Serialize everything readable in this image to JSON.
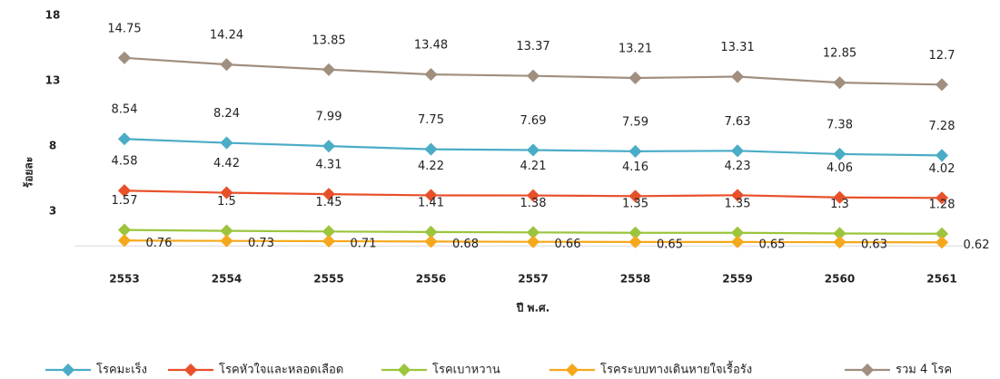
{
  "chart_data": {
    "type": "line",
    "y_label": "ร้อยละ",
    "x_label": "ปี พ.ศ.",
    "categories": [
      "2553",
      "2554",
      "2555",
      "2556",
      "2557",
      "2558",
      "2559",
      "2560",
      "2561"
    ],
    "series": [
      {
        "name": "โรคมะเร็ง",
        "color": "#4bacc6",
        "values": [
          8.54,
          8.24,
          7.99,
          7.75,
          7.69,
          7.59,
          7.63,
          7.38,
          7.28
        ]
      },
      {
        "name": "โรคหัวใจและหลอดเลือด",
        "color": "#e8502a",
        "values": [
          4.58,
          4.42,
          4.31,
          4.22,
          4.21,
          4.16,
          4.23,
          4.06,
          4.02
        ]
      },
      {
        "name": "โรคเบาหวาน",
        "color": "#9bc53d",
        "values": [
          1.57,
          1.5,
          1.45,
          1.41,
          1.38,
          1.35,
          1.35,
          1.3,
          1.28
        ]
      },
      {
        "name": "โรคระบบทางเดินหายใจเรื้อรัง",
        "color": "#f5a81c",
        "values": [
          0.76,
          0.73,
          0.71,
          0.68,
          0.66,
          0.65,
          0.65,
          0.63,
          0.62
        ]
      },
      {
        "name": "รวม 4 โรค",
        "color": "#a08f7f",
        "values": [
          14.75,
          14.24,
          13.85,
          13.48,
          13.37,
          13.21,
          13.31,
          12.85,
          12.7
        ]
      }
    ],
    "ylim": [
      -2,
      18
    ],
    "yticks": [
      3,
      8,
      13,
      18
    ],
    "grid": false,
    "legend": "bottom"
  }
}
